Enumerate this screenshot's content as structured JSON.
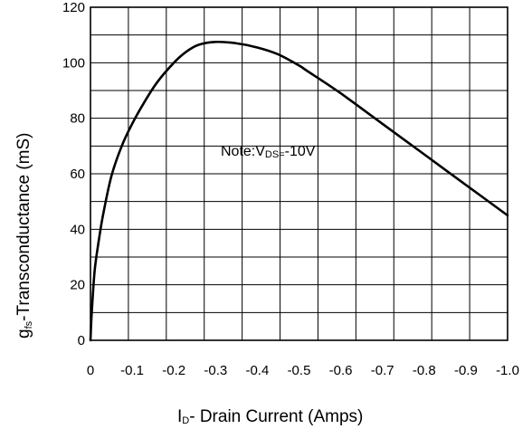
{
  "chart_data": {
    "type": "line",
    "xlabel_main": "I",
    "xlabel_sub": "D",
    "xlabel_rest": "- Drain Current (Amps)",
    "ylabel_main": "g",
    "ylabel_sub": "fs",
    "ylabel_rest": "-Transconductance (mS)",
    "note_prefix": "Note:V",
    "note_sub": "DS=",
    "note_rest": "-10V",
    "xlim": [
      0,
      -1.0
    ],
    "ylim": [
      0,
      120
    ],
    "grid": true,
    "x_ticks": [
      "0",
      "-0.1",
      "-0.2",
      "-0.3",
      "-0.4",
      "-0.5",
      "-0.6",
      "-0.7",
      "-0.8",
      "-0.9",
      "-1.0"
    ],
    "y_ticks": [
      "0",
      "20",
      "40",
      "60",
      "80",
      "100",
      "120"
    ],
    "series": [
      {
        "color": "#000000",
        "x": [
          0,
          -0.003,
          -0.01,
          -0.02,
          -0.03,
          -0.05,
          -0.075,
          -0.1,
          -0.13,
          -0.16,
          -0.2,
          -0.23,
          -0.26,
          -0.3,
          -0.35,
          -0.4,
          -0.45,
          -0.5,
          -0.52,
          -0.6,
          -0.7,
          -0.8,
          -0.9,
          -1.0
        ],
        "y": [
          0,
          10,
          25,
          36,
          45,
          59,
          70,
          78,
          86,
          93,
          100,
          104,
          106.5,
          107.5,
          107,
          105.5,
          103,
          99,
          97,
          89,
          78,
          67,
          56,
          45
        ]
      }
    ]
  }
}
